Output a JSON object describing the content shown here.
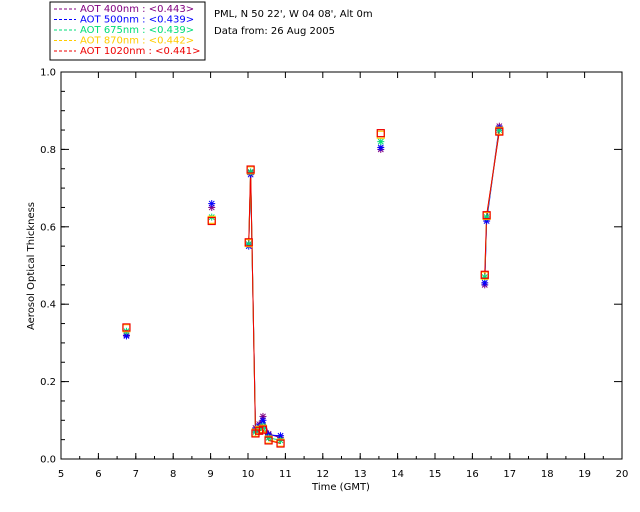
{
  "chart_data": {
    "type": "scatter",
    "site_line": "PML, N 50 22', W 04 08', Alt 0m",
    "date_line": "Data from: 26 Aug 2005",
    "xlabel": "Time (GMT)",
    "ylabel": "Aerosol Optical Thickness",
    "xlim": [
      5,
      20
    ],
    "ylim": [
      0.0,
      1.0
    ],
    "xticks": [
      "5",
      "6",
      "7",
      "8",
      "9",
      "10",
      "11",
      "12",
      "13",
      "14",
      "15",
      "16",
      "17",
      "18",
      "19",
      "20"
    ],
    "yticks": [
      "0.0",
      "0.2",
      "0.4",
      "0.6",
      "0.8",
      "1.0"
    ],
    "grid": false,
    "legend_position": "top-left",
    "series": [
      {
        "name": "AOT  400nm : <0.443>",
        "color": "#800080",
        "marker": "star",
        "x": [
          6.75,
          9.03,
          10.02,
          10.07,
          10.2,
          10.3,
          10.4,
          10.55,
          10.87,
          13.55,
          16.33,
          16.38,
          16.72
        ],
        "y": [
          0.32,
          0.65,
          0.555,
          0.74,
          0.08,
          0.09,
          0.11,
          0.065,
          0.055,
          0.8,
          0.45,
          0.62,
          0.86
        ]
      },
      {
        "name": "AOT  500nm : <0.439>",
        "color": "#0000ff",
        "marker": "star",
        "x": [
          6.75,
          9.03,
          10.02,
          10.07,
          10.2,
          10.3,
          10.4,
          10.55,
          10.87,
          13.55,
          16.33,
          16.38,
          16.72
        ],
        "y": [
          0.318,
          0.66,
          0.55,
          0.735,
          0.075,
          0.085,
          0.1,
          0.062,
          0.06,
          0.805,
          0.455,
          0.615,
          0.855
        ]
      },
      {
        "name": "AOT  675nm : <0.439>",
        "color": "#00dd77",
        "marker": "star",
        "x": [
          6.75,
          9.03,
          10.02,
          10.07,
          10.2,
          10.3,
          10.4,
          10.55,
          10.87,
          13.55,
          16.33,
          16.38,
          16.72
        ],
        "y": [
          0.33,
          0.625,
          0.555,
          0.742,
          0.07,
          0.08,
          0.085,
          0.055,
          0.048,
          0.82,
          0.47,
          0.625,
          0.85
        ]
      },
      {
        "name": "AOT  870nm : <0.442>",
        "color": "#ffcc00",
        "marker": "square",
        "x": [
          6.75,
          9.03,
          10.02,
          10.07,
          10.2,
          10.3,
          10.4,
          10.55,
          10.87,
          13.55,
          16.33,
          16.38,
          16.72
        ],
        "y": [
          0.338,
          0.618,
          0.558,
          0.746,
          0.068,
          0.075,
          0.078,
          0.05,
          0.042,
          0.838,
          0.474,
          0.628,
          0.848
        ]
      },
      {
        "name": "AOT 1020nm : <0.441>",
        "color": "#ee0000",
        "marker": "square",
        "x": [
          6.75,
          9.03,
          10.02,
          10.07,
          10.2,
          10.3,
          10.4,
          10.55,
          10.87,
          13.55,
          16.33,
          16.38,
          16.72
        ],
        "y": [
          0.34,
          0.615,
          0.56,
          0.748,
          0.066,
          0.073,
          0.076,
          0.048,
          0.04,
          0.842,
          0.476,
          0.63,
          0.846
        ]
      }
    ]
  }
}
